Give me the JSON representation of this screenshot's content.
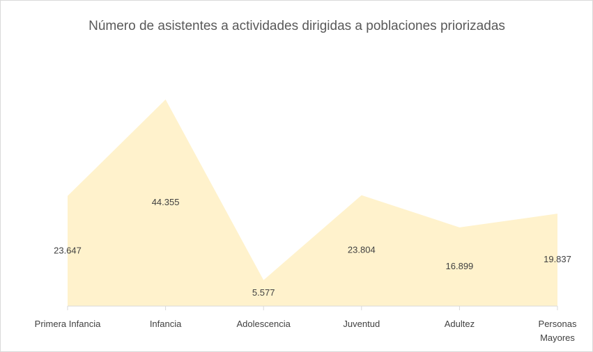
{
  "chart_data": {
    "type": "area",
    "title": "Número de asistentes a actividades dirigidas a poblaciones priorizadas",
    "categories": [
      "Primera Infancia",
      "Infancia",
      "Adolescencia",
      "Juventud",
      "Adultez",
      "Personas Mayores"
    ],
    "values": [
      23647,
      44355,
      5577,
      23804,
      16899,
      19837
    ],
    "value_labels": [
      "23.647",
      "44.355",
      "5.577",
      "23.804",
      "16.899",
      "19.837"
    ],
    "color": "#fff2cc"
  }
}
